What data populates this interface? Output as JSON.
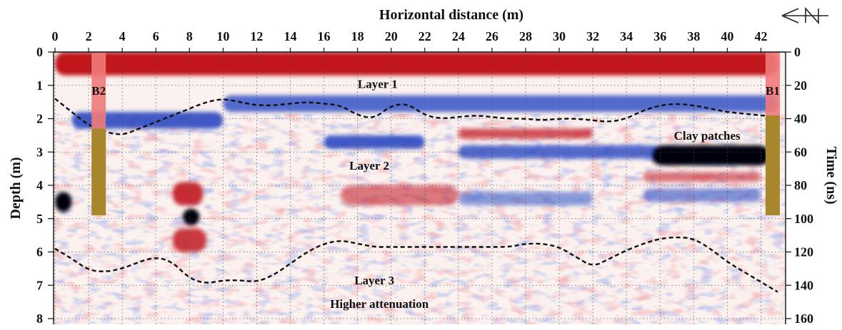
{
  "chart_data": {
    "type": "heatmap",
    "title": "Horizontal distance (m)",
    "xlabel": "Horizontal distance (m)",
    "ylabel": "Depth (m)",
    "y2label": "Time (ns)",
    "xlim": [
      0,
      43
    ],
    "ylim": [
      8,
      0
    ],
    "y2lim": [
      160,
      0
    ],
    "grid": true,
    "x_ticks": [
      "0",
      "2",
      "4",
      "6",
      "8",
      "10",
      "12",
      "14",
      "16",
      "18",
      "20",
      "22",
      "24",
      "26",
      "28",
      "30",
      "32",
      "34",
      "36",
      "38",
      "40",
      "42"
    ],
    "x_tick_values": [
      0,
      2,
      4,
      6,
      8,
      10,
      12,
      14,
      16,
      18,
      20,
      22,
      24,
      26,
      28,
      30,
      32,
      34,
      36,
      38,
      40,
      42
    ],
    "y_ticks": [
      "0",
      "1",
      "2",
      "3",
      "4",
      "5",
      "6",
      "7",
      "8"
    ],
    "y_tick_values": [
      0,
      1,
      2,
      3,
      4,
      5,
      6,
      7,
      8
    ],
    "y2_ticks": [
      "0",
      "20",
      "40",
      "60",
      "80",
      "100",
      "120",
      "140",
      "160"
    ],
    "y2_tick_values": [
      0,
      20,
      40,
      60,
      80,
      100,
      120,
      140,
      160
    ],
    "colors": {
      "positive": "#c0141c",
      "negative": "#1c3fc0",
      "strong": "#050510",
      "borehole_top": "#f07a7a",
      "borehole_fill": "#a8862c"
    },
    "boreholes": [
      {
        "label": "B2",
        "x": 2.6,
        "depth_top": 0,
        "depth_bottom": 4.9,
        "layer1_bottom": 2.3
      },
      {
        "label": "B1",
        "x": 42.7,
        "depth_top": 0,
        "depth_bottom": 4.9,
        "layer1_bottom": 1.9
      }
    ],
    "annotations": [
      {
        "text": "Layer 1",
        "x": 19.2,
        "depth": 0.95
      },
      {
        "text": "Layer 2",
        "x": 18.7,
        "depth": 3.4
      },
      {
        "text": "Layer 3",
        "x": 19.0,
        "depth": 6.85
      },
      {
        "text": "Higher attenuation",
        "x": 19.3,
        "depth": 7.55
      },
      {
        "text": "Clay patches",
        "x": 38.8,
        "depth": 2.5
      }
    ],
    "interfaces": [
      {
        "name": "layer-1-2-boundary",
        "x": [
          0,
          1,
          2,
          3,
          4,
          5,
          6,
          7,
          8,
          9,
          10,
          11,
          12,
          13,
          14,
          15,
          16,
          17,
          18,
          19,
          20,
          21,
          22,
          23,
          24,
          25,
          26,
          27,
          28,
          29,
          30,
          31,
          32,
          33,
          34,
          35,
          36,
          37,
          38,
          39,
          40,
          41,
          42,
          43
        ],
        "depth": [
          1.4,
          1.8,
          2.2,
          2.4,
          2.5,
          2.3,
          2.1,
          1.9,
          1.7,
          1.5,
          1.4,
          1.5,
          1.6,
          1.6,
          1.55,
          1.5,
          1.55,
          1.6,
          1.9,
          2.0,
          1.6,
          1.55,
          1.9,
          2.0,
          1.95,
          1.9,
          1.95,
          2.0,
          2.0,
          2.05,
          2.0,
          2.0,
          2.05,
          2.1,
          2.0,
          1.75,
          1.6,
          1.55,
          1.6,
          1.7,
          1.8,
          1.85,
          1.9,
          1.95
        ]
      },
      {
        "name": "layer-2-3-boundary",
        "x": [
          0,
          1,
          2,
          3,
          4,
          5,
          6,
          7,
          8,
          9,
          10,
          11,
          12,
          13,
          14,
          15,
          16,
          17,
          18,
          19,
          20,
          21,
          22,
          23,
          24,
          25,
          26,
          27,
          28,
          29,
          30,
          31,
          32,
          33,
          34,
          35,
          36,
          37,
          38,
          39,
          40,
          41,
          42,
          43
        ],
        "depth": [
          5.9,
          6.2,
          6.55,
          6.6,
          6.5,
          6.3,
          6.15,
          6.3,
          6.8,
          6.95,
          6.85,
          6.85,
          6.9,
          6.7,
          6.35,
          6.0,
          5.75,
          5.65,
          5.75,
          5.85,
          5.85,
          5.85,
          5.85,
          5.85,
          5.85,
          5.85,
          5.85,
          5.85,
          5.75,
          5.75,
          5.85,
          6.15,
          6.45,
          6.2,
          5.95,
          5.75,
          5.6,
          5.55,
          5.6,
          5.9,
          6.3,
          6.6,
          6.9,
          7.2
        ]
      }
    ],
    "reflection_bands": [
      {
        "color": "red",
        "x": [
          0,
          43
        ],
        "depth": [
          0,
          0.7
        ],
        "intensity": 1.0
      },
      {
        "color": "blue",
        "x": [
          1,
          10
        ],
        "depth": [
          1.8,
          2.3
        ],
        "intensity": 0.85
      },
      {
        "color": "blue",
        "x": [
          10,
          43
        ],
        "depth": [
          1.3,
          1.8
        ],
        "intensity": 0.75
      },
      {
        "color": "blue",
        "x": [
          16,
          22
        ],
        "depth": [
          2.5,
          2.9
        ],
        "intensity": 0.85
      },
      {
        "color": "red",
        "x": [
          24,
          32
        ],
        "depth": [
          2.3,
          2.6
        ],
        "intensity": 0.7
      },
      {
        "color": "blue",
        "x": [
          24,
          36
        ],
        "depth": [
          2.8,
          3.2
        ],
        "intensity": 0.75
      },
      {
        "color": "black",
        "x": [
          35.5,
          42.5
        ],
        "depth": [
          2.8,
          3.4
        ],
        "intensity": 1.0
      },
      {
        "color": "red",
        "x": [
          35,
          42
        ],
        "depth": [
          3.6,
          3.9
        ],
        "intensity": 0.55
      },
      {
        "color": "blue",
        "x": [
          35,
          42
        ],
        "depth": [
          4.1,
          4.5
        ],
        "intensity": 0.55
      },
      {
        "color": "red",
        "x": [
          7,
          8.8
        ],
        "depth": [
          3.9,
          4.6
        ],
        "intensity": 0.9
      },
      {
        "color": "black",
        "x": [
          7.6,
          8.6
        ],
        "depth": [
          4.7,
          5.2
        ],
        "intensity": 1.0
      },
      {
        "color": "red",
        "x": [
          7,
          9
        ],
        "depth": [
          5.3,
          6.0
        ],
        "intensity": 0.85
      },
      {
        "color": "black",
        "x": [
          0,
          1
        ],
        "depth": [
          4.2,
          4.8
        ],
        "intensity": 1.0
      },
      {
        "color": "red",
        "x": [
          17,
          24
        ],
        "depth": [
          4.0,
          4.6
        ],
        "intensity": 0.55
      },
      {
        "color": "blue",
        "x": [
          24,
          32
        ],
        "depth": [
          4.2,
          4.6
        ],
        "intensity": 0.5
      }
    ]
  }
}
